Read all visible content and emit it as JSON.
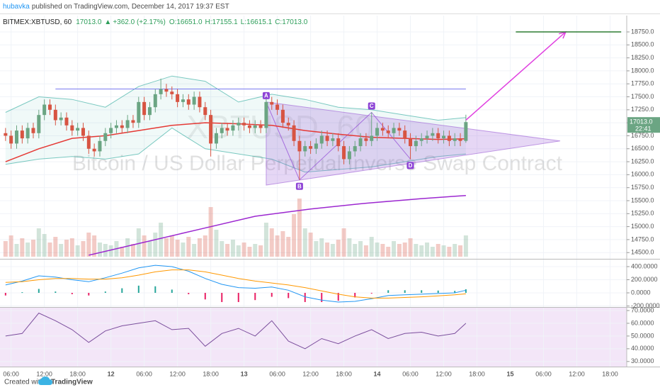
{
  "header": {
    "author": "hubavka",
    "published": "published on TradingView.com, December 14, 2017 19:37 EST"
  },
  "legend": {
    "symbol": "BITMEX:XBTUSD, 60",
    "price": "17013.0",
    "change": "+362.0 (+2.17%)",
    "open": "O:16651.0",
    "high": "H:17155.1",
    "low": "L:16615.1",
    "close": "C:17013.0"
  },
  "footer": {
    "created": "Created with",
    "brand": "TradingView"
  },
  "chart_data": [
    {
      "type": "candlestick",
      "watermark": "XBTUSD, 60",
      "description": "Bitcoin / US Dollar Perpetual Inverse Swap Contract",
      "xlim": [
        4,
        117
      ],
      "xticks": [
        {
          "value": 6,
          "label": "06:00"
        },
        {
          "value": 12,
          "label": "12:00"
        },
        {
          "value": 18,
          "label": "18:00"
        },
        {
          "value": 24,
          "label": "12"
        },
        {
          "value": 30,
          "label": "06:00"
        },
        {
          "value": 36,
          "label": "12:00"
        },
        {
          "value": 42,
          "label": "18:00"
        },
        {
          "value": 48,
          "label": "13"
        },
        {
          "value": 54,
          "label": "06:00"
        },
        {
          "value": 60,
          "label": "12:00"
        },
        {
          "value": 66,
          "label": "18:00"
        },
        {
          "value": 72,
          "label": "14"
        },
        {
          "value": 78,
          "label": "06:00"
        },
        {
          "value": 84,
          "label": "12:00"
        },
        {
          "value": 90,
          "label": "18:00"
        },
        {
          "value": 96,
          "label": "15"
        },
        {
          "value": 102,
          "label": "06:00"
        },
        {
          "value": 108,
          "label": "12:00"
        },
        {
          "value": 114,
          "label": "18:00"
        }
      ],
      "ylim": [
        14380,
        19064
      ],
      "yticks": [
        {
          "value": 14500,
          "label": "14500.0"
        },
        {
          "value": 14750,
          "label": "14750.0"
        },
        {
          "value": 15000,
          "label": "15000.0"
        },
        {
          "value": 15250,
          "label": "15250.0"
        },
        {
          "value": 15500,
          "label": "15500.0"
        },
        {
          "value": 15750,
          "label": "15750.0"
        },
        {
          "value": 16000,
          "label": "16000.0"
        },
        {
          "value": 16250,
          "label": "16250.0"
        },
        {
          "value": 16500,
          "label": "16500.0"
        },
        {
          "value": 16750,
          "label": "16750.0"
        },
        {
          "value": 17000,
          "label": "17000.0"
        },
        {
          "value": 17250,
          "label": "17250.0"
        },
        {
          "value": 17500,
          "label": "17500.0"
        },
        {
          "value": 17750,
          "label": "17750.0"
        },
        {
          "value": 18000,
          "label": "18000.0"
        },
        {
          "value": 18250,
          "label": "18250.0"
        },
        {
          "value": 18500,
          "label": "18500.0"
        },
        {
          "value": 18750,
          "label": "18750.0"
        }
      ],
      "up_color": "#6ba583",
      "down_color": "#d75442",
      "x": [
        5,
        6,
        7,
        8,
        9,
        10,
        11,
        12,
        13,
        14,
        15,
        16,
        17,
        18,
        19,
        20,
        21,
        22,
        23,
        24,
        25,
        26,
        27,
        28,
        29,
        30,
        31,
        32,
        33,
        34,
        35,
        36,
        37,
        38,
        39,
        40,
        41,
        42,
        43,
        44,
        45,
        46,
        47,
        48,
        49,
        50,
        51,
        52,
        53,
        54,
        55,
        56,
        57,
        58,
        59,
        60,
        61,
        62,
        63,
        64,
        65,
        66,
        67,
        68,
        69,
        70,
        71,
        72,
        73,
        74,
        75,
        76,
        77,
        78,
        79,
        80,
        81,
        82,
        83,
        84,
        85,
        86,
        87,
        88
      ],
      "open": [
        16800,
        16750,
        16600,
        16850,
        16700,
        16900,
        16800,
        17150,
        17350,
        17250,
        17050,
        17100,
        16950,
        16850,
        16900,
        16750,
        16500,
        16450,
        16650,
        16800,
        16900,
        16950,
        16900,
        17050,
        17000,
        17400,
        17150,
        17300,
        17550,
        17650,
        17600,
        17550,
        17400,
        17450,
        17350,
        17500,
        17300,
        17150,
        16600,
        16800,
        16900,
        16850,
        16950,
        17000,
        16950,
        16900,
        16950,
        16900,
        17400,
        17350,
        17250,
        17000,
        16950,
        16650,
        16450,
        16550,
        16500,
        16600,
        16750,
        16650,
        16700,
        16550,
        16300,
        16450,
        16550,
        16700,
        16650,
        16750,
        16900,
        16850,
        16800,
        16900,
        16850,
        16700,
        16550,
        16650,
        16700,
        16750,
        16800,
        16700,
        16750,
        16650,
        16700,
        16651
      ],
      "high": [
        16900,
        16850,
        16950,
        16950,
        17000,
        17000,
        17250,
        17450,
        17450,
        17350,
        17200,
        17200,
        17050,
        17000,
        17000,
        16850,
        16600,
        16750,
        16900,
        17000,
        17050,
        17050,
        17150,
        17150,
        17500,
        17500,
        17400,
        17650,
        17850,
        17750,
        17700,
        17650,
        17550,
        17550,
        17600,
        17600,
        17400,
        17250,
        16900,
        17000,
        17000,
        17050,
        17100,
        17100,
        17050,
        17050,
        17050,
        17500,
        17500,
        17450,
        17350,
        17100,
        17050,
        16750,
        16650,
        16650,
        16700,
        16850,
        16850,
        16800,
        16800,
        16650,
        16550,
        16650,
        16800,
        16800,
        17200,
        17000,
        17000,
        16950,
        17000,
        17000,
        16950,
        16800,
        16750,
        16800,
        16850,
        16900,
        16900,
        16850,
        16850,
        16800,
        16800,
        17155.1
      ],
      "low": [
        16650,
        16500,
        16500,
        16600,
        16600,
        16700,
        16700,
        17050,
        17150,
        16950,
        16950,
        16850,
        16750,
        16750,
        16650,
        16400,
        16350,
        16350,
        16550,
        16700,
        16800,
        16800,
        16800,
        16900,
        16900,
        17050,
        17050,
        17200,
        17450,
        17500,
        17450,
        17300,
        17300,
        17250,
        17250,
        17200,
        17050,
        16350,
        16500,
        16700,
        16750,
        16750,
        16850,
        16850,
        16800,
        16800,
        16800,
        16800,
        17250,
        17150,
        16900,
        16850,
        16550,
        15900,
        16350,
        16400,
        16400,
        16500,
        16550,
        16550,
        16450,
        16200,
        16200,
        16350,
        16450,
        16550,
        16550,
        16650,
        16750,
        16700,
        16700,
        16750,
        16600,
        16300,
        16450,
        16550,
        16600,
        16650,
        16600,
        16600,
        16550,
        16550,
        16550,
        16615.1
      ],
      "close": [
        16750,
        16600,
        16850,
        16700,
        16900,
        16800,
        17150,
        17350,
        17250,
        17050,
        17100,
        16950,
        16850,
        16900,
        16750,
        16500,
        16450,
        16650,
        16800,
        16900,
        16950,
        16900,
        17050,
        17000,
        17400,
        17150,
        17300,
        17550,
        17650,
        17600,
        17550,
        17400,
        17450,
        17350,
        17500,
        17300,
        17150,
        16600,
        16800,
        16900,
        16850,
        16950,
        17000,
        16950,
        16900,
        16950,
        16900,
        17400,
        17350,
        17250,
        17000,
        16950,
        16650,
        16450,
        16550,
        16500,
        16600,
        16750,
        16650,
        16700,
        16550,
        16300,
        16450,
        16550,
        16700,
        16650,
        16750,
        16900,
        16850,
        16800,
        16900,
        16850,
        16700,
        16550,
        16650,
        16700,
        16750,
        16800,
        16700,
        16750,
        16650,
        16700,
        16651,
        17013
      ],
      "vlim": [
        0,
        100
      ],
      "volume": [
        22,
        30,
        18,
        26,
        20,
        24,
        40,
        32,
        20,
        28,
        18,
        24,
        26,
        16,
        22,
        34,
        30,
        20,
        18,
        16,
        22,
        14,
        26,
        18,
        40,
        30,
        22,
        34,
        48,
        26,
        30,
        24,
        20,
        28,
        18,
        26,
        30,
        70,
        38,
        22,
        18,
        24,
        16,
        20,
        14,
        18,
        16,
        48,
        40,
        30,
        36,
        28,
        60,
        82,
        40,
        34,
        22,
        26,
        20,
        18,
        24,
        40,
        26,
        18,
        22,
        16,
        28,
        20,
        18,
        14,
        22,
        18,
        20,
        26,
        18,
        16,
        20,
        14,
        18,
        16,
        14,
        18,
        16,
        30
      ],
      "bands": {
        "color": "#26a69a",
        "x": [
          5,
          11,
          17,
          23,
          29,
          35,
          41,
          47,
          53,
          59,
          65,
          71,
          77,
          83,
          88
        ],
        "upper": [
          17200,
          17500,
          17450,
          17300,
          17700,
          17900,
          17800,
          17400,
          17550,
          17450,
          17300,
          17250,
          17150,
          17050,
          17100
        ],
        "lower": [
          16200,
          16300,
          16350,
          16300,
          16400,
          16900,
          16500,
          16400,
          16300,
          16050,
          16100,
          16150,
          16250,
          16350,
          16400
        ]
      },
      "lines": [
        {
          "color": "#e53935",
          "x": [
            5,
            11,
            17,
            23,
            29,
            35,
            41,
            47,
            53,
            59,
            65,
            71,
            77,
            83,
            88
          ],
          "values": [
            16250,
            16500,
            16700,
            16750,
            16850,
            16950,
            17000,
            16980,
            16950,
            16850,
            16780,
            16720,
            16700,
            16680,
            16690
          ]
        },
        {
          "color": "#9c27d0",
          "x": [
            20,
            30,
            40,
            50,
            60,
            70,
            80,
            88
          ],
          "values": [
            14450,
            14700,
            14950,
            15200,
            15340,
            15450,
            15540,
            15600
          ]
        }
      ],
      "drawings": {
        "level": {
          "color": "#7b7bf0",
          "x": [
            14,
            88
          ],
          "y": [
            17650,
            17650
          ]
        },
        "triangle": {
          "color": "#9c5fd6",
          "x": [
            52,
            52,
            105
          ],
          "y": [
            17400,
            15800,
            16650
          ]
        },
        "pattern": {
          "color": "#8e44d6",
          "labels": [
            "A",
            "B",
            "C",
            "D"
          ],
          "x": [
            52,
            58,
            71,
            78
          ],
          "y": [
            17400,
            15900,
            17200,
            16300
          ]
        },
        "arrow": {
          "color": "#e040e0",
          "x": [
            88,
            106
          ],
          "y": [
            17050,
            18750
          ]
        },
        "target": {
          "color": "#2e7d32",
          "x": [
            97,
            116
          ],
          "y": [
            18750,
            18750
          ]
        }
      },
      "last_label": "17013.0",
      "countdown": "22:41"
    },
    {
      "type": "macd",
      "ylim": [
        -216,
        508
      ],
      "yticks": [
        {
          "value": 400,
          "label": "400.0000"
        },
        {
          "value": 200,
          "label": "200.0000"
        },
        {
          "value": 0,
          "label": "0.0000"
        },
        {
          "value": -200,
          "label": "-200.0000"
        }
      ],
      "x": [
        5,
        8,
        11,
        14,
        17,
        20,
        23,
        26,
        29,
        32,
        35,
        38,
        41,
        44,
        47,
        50,
        53,
        56,
        59,
        62,
        65,
        68,
        71,
        74,
        77,
        80,
        83,
        86,
        88
      ],
      "histogram": [
        -40,
        10,
        60,
        20,
        -20,
        -40,
        20,
        70,
        110,
        100,
        50,
        -20,
        -100,
        -140,
        -140,
        -110,
        -60,
        -80,
        -140,
        -140,
        -120,
        -70,
        -10,
        40,
        40,
        40,
        35,
        30,
        55
      ],
      "hist_up": "#26a69a",
      "hist_down": "#e91e63",
      "series": [
        {
          "color": "#2196f3",
          "values": [
            120,
            180,
            260,
            240,
            200,
            170,
            230,
            300,
            380,
            420,
            400,
            330,
            220,
            130,
            80,
            70,
            90,
            40,
            -60,
            -110,
            -140,
            -130,
            -90,
            -40,
            -30,
            -20,
            -10,
            0,
            40
          ]
        },
        {
          "color": "#ff9800",
          "values": [
            160,
            170,
            200,
            220,
            220,
            210,
            210,
            230,
            270,
            320,
            350,
            350,
            320,
            270,
            220,
            180,
            150,
            120,
            80,
            30,
            -20,
            -60,
            -80,
            -80,
            -70,
            -60,
            -45,
            -30,
            -15
          ]
        }
      ]
    },
    {
      "type": "line",
      "ylim": [
        26,
        72.2
      ],
      "yticks": [
        {
          "value": 70,
          "label": "70.0000"
        },
        {
          "value": 60,
          "label": "60.0000"
        },
        {
          "value": 50,
          "label": "50.0000"
        },
        {
          "value": 40,
          "label": "40.0000"
        },
        {
          "value": 30,
          "label": "30.0000"
        }
      ],
      "color": "#7b4f9d",
      "x": [
        5,
        8,
        11,
        14,
        17,
        20,
        23,
        26,
        29,
        32,
        35,
        38,
        41,
        44,
        47,
        50,
        53,
        56,
        59,
        62,
        65,
        68,
        71,
        74,
        77,
        80,
        83,
        86,
        88
      ],
      "values": [
        50,
        52,
        68,
        62,
        55,
        45,
        54,
        58,
        60,
        62,
        55,
        56,
        42,
        52,
        56,
        50,
        62,
        46,
        40,
        48,
        44,
        50,
        55,
        48,
        52,
        53,
        50,
        52,
        60
      ]
    }
  ]
}
